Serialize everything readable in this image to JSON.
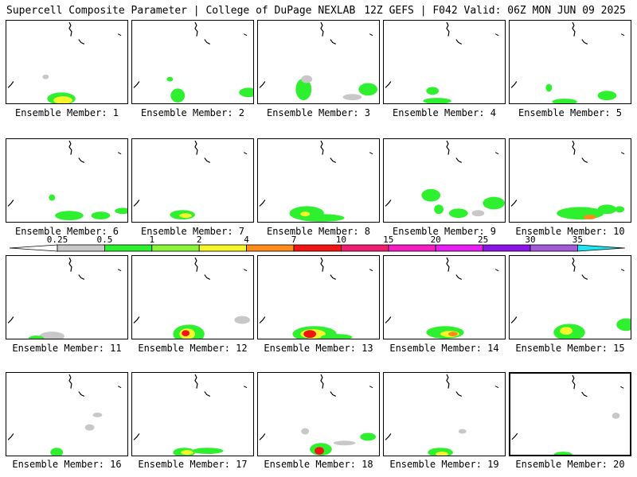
{
  "header": {
    "title": "Supercell Composite Parameter | College of DuPage NEXLAB",
    "run": "12Z GEFS | F042 Valid: 06Z MON JUN 09 2025"
  },
  "colorbar": {
    "ticks": [
      "0.25",
      "0.5",
      "1",
      "2",
      "4",
      "7",
      "10",
      "15",
      "20",
      "25",
      "30",
      "35"
    ],
    "colors": [
      "#c8c8c8",
      "#2ff02f",
      "#8cf23a",
      "#f5f52c",
      "#ff8c1a",
      "#f01414",
      "#f01e6e",
      "#f51ec3",
      "#e61ef0",
      "#8a14e6",
      "#a35ad7",
      "#1ee6f0"
    ]
  },
  "members": [
    {
      "label": "Ensemble Member: 1"
    },
    {
      "label": "Ensemble Member: 2"
    },
    {
      "label": "Ensemble Member: 3"
    },
    {
      "label": "Ensemble Member: 4"
    },
    {
      "label": "Ensemble Member: 5"
    },
    {
      "label": "Ensemble Member: 6"
    },
    {
      "label": "Ensemble Member: 7"
    },
    {
      "label": "Ensemble Member: 8"
    },
    {
      "label": "Ensemble Member: 9"
    },
    {
      "label": "Ensemble Member: 10"
    },
    {
      "label": "Ensemble Member: 11"
    },
    {
      "label": "Ensemble Member: 12"
    },
    {
      "label": "Ensemble Member: 13"
    },
    {
      "label": "Ensemble Member: 14"
    },
    {
      "label": "Ensemble Member: 15"
    },
    {
      "label": "Ensemble Member: 16"
    },
    {
      "label": "Ensemble Member: 17"
    },
    {
      "label": "Ensemble Member: 18"
    },
    {
      "label": "Ensemble Member: 19"
    },
    {
      "label": "Ensemble Member: 20"
    }
  ]
}
